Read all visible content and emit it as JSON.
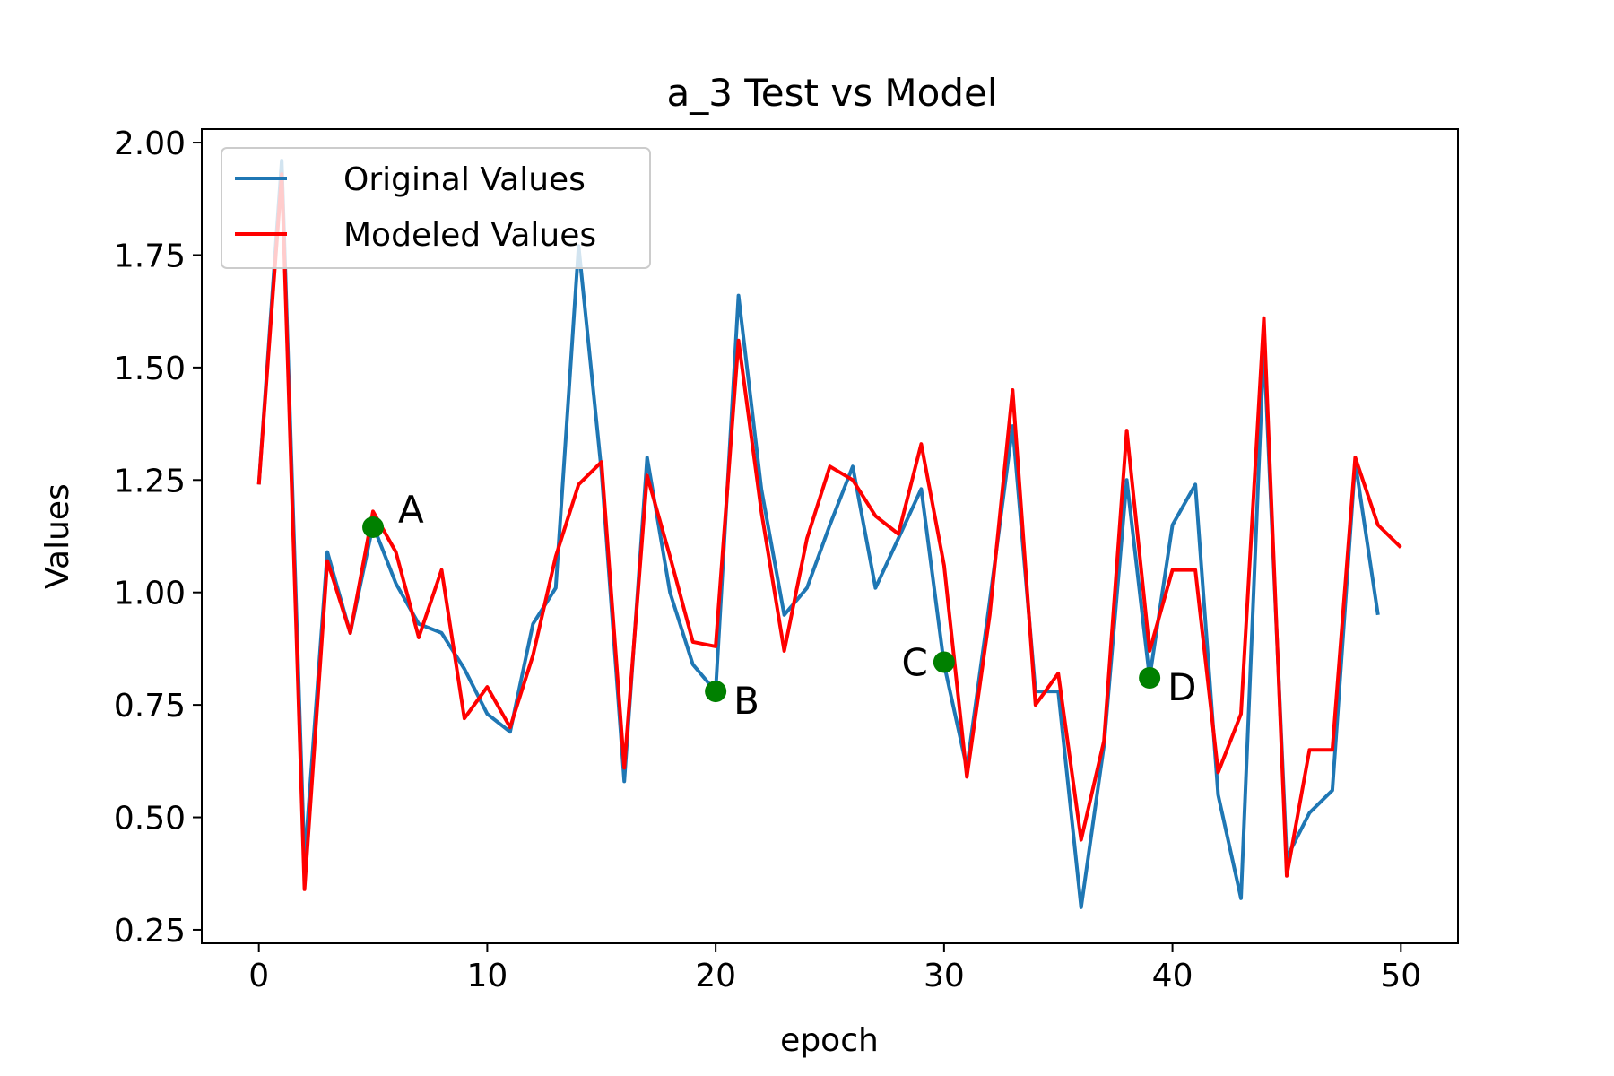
{
  "chart_data": {
    "type": "line",
    "title": "a_3 Test vs Model",
    "xlabel": "epoch",
    "ylabel": "Values",
    "xlim": [
      -2.5,
      52.5
    ],
    "ylim": [
      0.22,
      2.03
    ],
    "xticks": [
      0,
      10,
      20,
      30,
      40,
      50
    ],
    "yticks": [
      0.25,
      0.5,
      0.75,
      1.0,
      1.25,
      1.5,
      1.75,
      2.0
    ],
    "ytick_labels": [
      "0.25",
      "0.50",
      "0.75",
      "1.00",
      "1.25",
      "1.50",
      "1.75",
      "2.00"
    ],
    "xtick_labels": [
      "0",
      "10",
      "20",
      "30",
      "40",
      "50"
    ],
    "grid": false,
    "legend_position": "upper-left",
    "series": [
      {
        "name": "Original Values",
        "color": "#1f77b4",
        "x": [
          0,
          1,
          2,
          3,
          4,
          5,
          6,
          7,
          8,
          9,
          10,
          11,
          12,
          13,
          14,
          15,
          16,
          17,
          18,
          19,
          20,
          21,
          22,
          23,
          24,
          25,
          26,
          27,
          28,
          29,
          30,
          31,
          32,
          33,
          34,
          35,
          36,
          37,
          38,
          39,
          40,
          41,
          42,
          43,
          44,
          45,
          46,
          47,
          48,
          49
        ],
        "y": [
          1.24,
          1.96,
          0.4,
          1.09,
          0.91,
          1.15,
          1.02,
          0.93,
          0.91,
          0.83,
          0.73,
          0.69,
          0.93,
          1.01,
          1.77,
          1.27,
          0.58,
          1.3,
          1.0,
          0.84,
          0.78,
          1.66,
          1.23,
          0.95,
          1.01,
          1.15,
          1.28,
          1.01,
          1.12,
          1.23,
          0.84,
          0.61,
          0.98,
          1.37,
          0.78,
          0.78,
          0.3,
          0.66,
          1.25,
          0.81,
          1.15,
          1.24,
          0.55,
          0.32,
          1.55,
          0.41,
          0.51,
          0.56,
          1.29,
          0.95
        ]
      },
      {
        "name": "Modeled Values",
        "color": "#ff0000",
        "x": [
          0,
          1,
          2,
          3,
          4,
          5,
          6,
          7,
          8,
          9,
          10,
          11,
          12,
          13,
          14,
          15,
          16,
          17,
          18,
          19,
          20,
          21,
          22,
          23,
          24,
          25,
          26,
          27,
          28,
          29,
          30,
          31,
          32,
          33,
          34,
          35,
          36,
          37,
          38,
          39,
          40,
          41,
          42,
          43,
          44,
          45,
          46,
          47,
          48,
          49,
          50
        ],
        "y": [
          1.24,
          1.93,
          0.34,
          1.07,
          0.91,
          1.18,
          1.09,
          0.9,
          1.05,
          0.72,
          0.79,
          0.7,
          0.86,
          1.08,
          1.24,
          1.29,
          0.61,
          1.26,
          1.08,
          0.89,
          0.88,
          1.56,
          1.18,
          0.87,
          1.12,
          1.28,
          1.25,
          1.17,
          1.13,
          1.33,
          1.06,
          0.59,
          0.95,
          1.45,
          0.75,
          0.82,
          0.45,
          0.67,
          1.36,
          0.87,
          1.05,
          1.05,
          0.6,
          0.73,
          1.61,
          0.37,
          0.65,
          0.65,
          1.3,
          1.15,
          1.1
        ]
      }
    ],
    "annotations": [
      {
        "label": "A",
        "x": 5,
        "y": 1.145,
        "color": "#008000",
        "placement": "upper-right"
      },
      {
        "label": "B",
        "x": 20,
        "y": 0.78,
        "color": "#008000",
        "placement": "lower-right"
      },
      {
        "label": "C",
        "x": 30,
        "y": 0.845,
        "color": "#008000",
        "placement": "left"
      },
      {
        "label": "D",
        "x": 39,
        "y": 0.81,
        "color": "#008000",
        "placement": "lower-right"
      }
    ]
  }
}
